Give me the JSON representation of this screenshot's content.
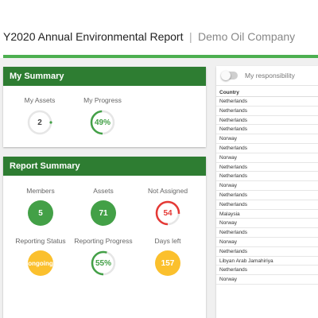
{
  "header": {
    "title": "Y2020 Annual Environmental Report",
    "separator": "|",
    "company": "Demo Oil Company"
  },
  "my_summary": {
    "title": "My Summary",
    "stats": [
      {
        "label": "My Assets",
        "value": "2",
        "fraction": 0.0
      },
      {
        "label": "My Progress",
        "value": "49%",
        "fraction": 0.49
      }
    ]
  },
  "report_summary": {
    "title": "Report Summary",
    "stats": [
      {
        "label": "Members",
        "value": "5"
      },
      {
        "label": "Assets",
        "value": "71"
      },
      {
        "label": "Not Assigned",
        "value": "54",
        "fraction": 0.76
      },
      {
        "label": "Reporting Status",
        "value": "ongoing"
      },
      {
        "label": "Reporting Progress",
        "value": "55%",
        "fraction": 0.55
      },
      {
        "label": "Days left",
        "value": "157"
      }
    ]
  },
  "responsibility": {
    "toggle_label": "My responsibility",
    "toggle_on": false,
    "column_header": "Country",
    "rows": [
      "Netherlands",
      "Netherlands",
      "Netherlands",
      "Netherlands",
      "Norway",
      "Netherlands",
      "Norway",
      "Netherlands",
      "Netherlands",
      "Norway",
      "Netherlands",
      "Netherlands",
      "Malaysia",
      "Norway",
      "Netherlands",
      "Norway",
      "Netherlands",
      "Libyan Arab Jamahiriya",
      "Netherlands",
      "Norway"
    ]
  },
  "colors": {
    "brand_green": "#2e7d32",
    "accent_green": "#4caf50",
    "stat_green": "#43a047",
    "stat_yellow": "#fbc02d",
    "warning_red": "#e53935"
  }
}
